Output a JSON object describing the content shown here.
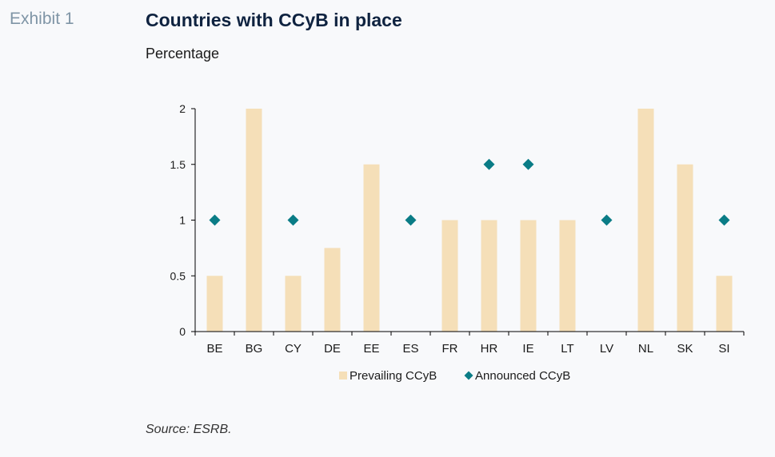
{
  "header": {
    "exhibit": "Exhibit 1",
    "title": "Countries with CCyB in place",
    "subtitle": "Percentage"
  },
  "footer": {
    "source": "Source: ESRB."
  },
  "colors": {
    "bar": "#f5dfb8",
    "diamond": "#0a7c86",
    "axis": "#000000",
    "text": "#1a1a1a"
  },
  "chart_data": {
    "type": "bar",
    "categories": [
      "BE",
      "BG",
      "CY",
      "DE",
      "EE",
      "ES",
      "FR",
      "HR",
      "IE",
      "LT",
      "LV",
      "NL",
      "SK",
      "SI"
    ],
    "series": [
      {
        "name": "Prevailing CCyB",
        "kind": "bar",
        "values": [
          0.5,
          2,
          0.5,
          0.75,
          1.5,
          null,
          1,
          1,
          1,
          1,
          null,
          2,
          1.5,
          0.5
        ]
      },
      {
        "name": "Announced CCyB",
        "kind": "marker",
        "values": [
          1,
          null,
          1,
          null,
          null,
          1,
          null,
          1.5,
          1.5,
          null,
          1,
          null,
          null,
          1
        ]
      }
    ],
    "ylim": [
      0,
      2
    ],
    "yticks": [
      "0",
      "0.5",
      "1",
      "1.5",
      "2"
    ],
    "legend": "bottom",
    "grid": false
  }
}
